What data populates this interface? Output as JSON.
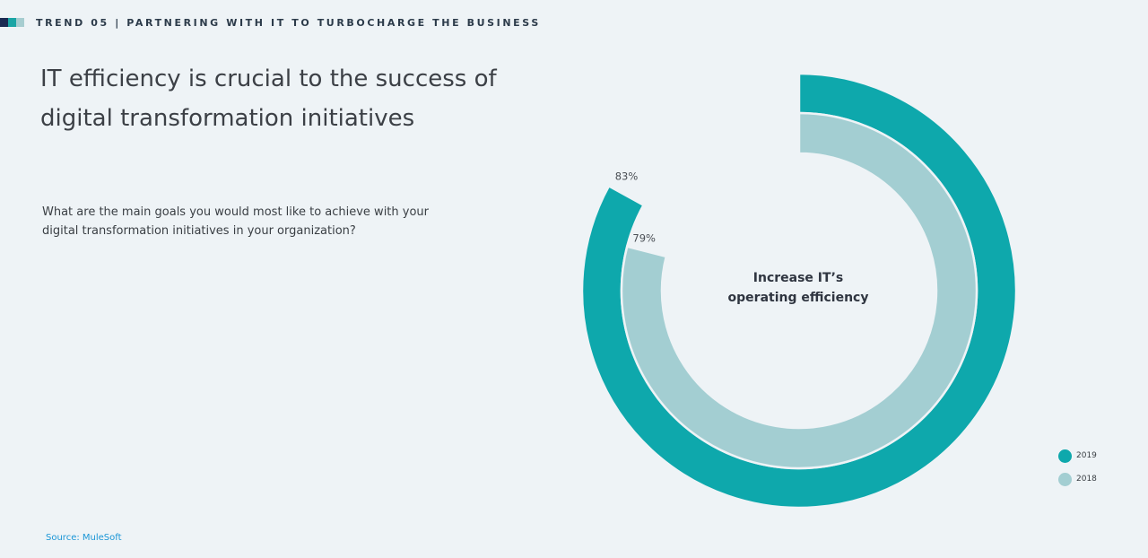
{
  "header": {
    "label": "TREND 05 | PARTNERING WITH IT TO TURBOCHARGE THE BUSINESS",
    "bar_colors": [
      "#1a2a52",
      "#1aa5a5",
      "#a6cdd0"
    ]
  },
  "title": "IT efficiency is crucial to the success of digital transformation initiatives",
  "question": "What are the main goals you would most like to achieve with your digital transformation initiatives in your organization?",
  "source": "Source: MuleSoft",
  "chart_data": {
    "type": "radial_bar",
    "center_label": [
      "Increase IT’s",
      "operating efficiency"
    ],
    "series": [
      {
        "name": "2019",
        "value": 83,
        "label": "83%",
        "color": "#0ea8ac"
      },
      {
        "name": "2018",
        "value": 79,
        "label": "79%",
        "color": "#a3ced2"
      }
    ],
    "max": 100,
    "legend_position": "bottom-right"
  }
}
